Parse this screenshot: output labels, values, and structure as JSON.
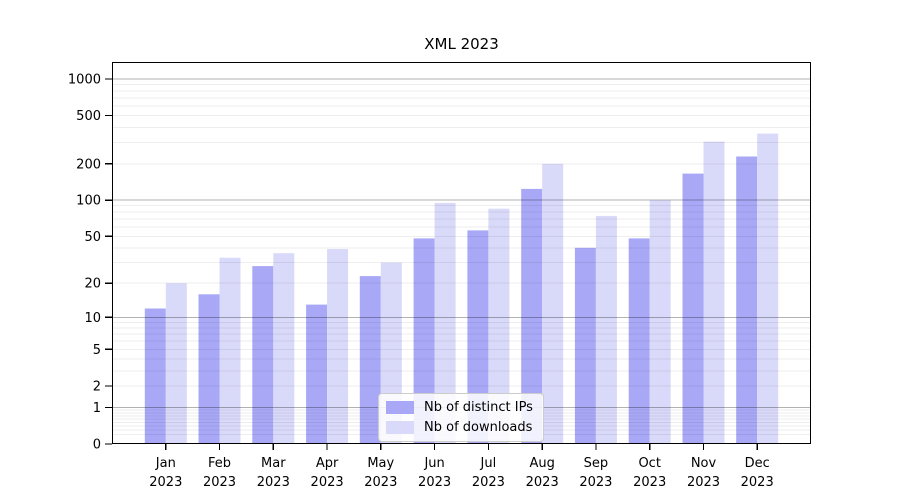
{
  "title": "XML 2023",
  "chart_data": {
    "type": "bar",
    "title": "XML 2023",
    "categories": [
      "Jan",
      "Feb",
      "Mar",
      "Apr",
      "May",
      "Jun",
      "Jul",
      "Aug",
      "Sep",
      "Oct",
      "Nov",
      "Dec"
    ],
    "category_year_line": "2023",
    "series": [
      {
        "name": "Nb of distinct IPs",
        "color": "#a8a8f6",
        "values": [
          12,
          16,
          28,
          13,
          23,
          48,
          56,
          124,
          40,
          48,
          166,
          230
        ]
      },
      {
        "name": "Nb of downloads",
        "color": "#d9d9f9",
        "values": [
          20,
          33,
          36,
          39,
          30,
          95,
          85,
          200,
          74,
          100,
          305,
          355
        ]
      }
    ],
    "yscale": "log1p",
    "y_ticks": [
      0,
      1,
      2,
      5,
      10,
      20,
      50,
      100,
      200,
      500,
      1000
    ],
    "ylim": [
      0,
      1380
    ],
    "xlabel": "",
    "ylabel": "",
    "grid": true,
    "grid_major_color": "#b3b3b3",
    "grid_minor_color": "#ebebeb",
    "legend_position": "lower center",
    "axis_color": "#000000"
  }
}
